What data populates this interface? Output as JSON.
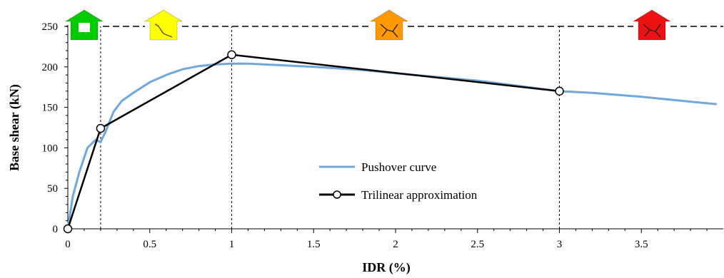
{
  "chart_data": {
    "type": "line",
    "title": "",
    "xlabel": "IDR (%)",
    "ylabel": "Base shear (kN)",
    "xlim": [
      0,
      4
    ],
    "ylim": [
      0,
      250
    ],
    "x_ticks": [
      "0",
      "0.5",
      "1",
      "1.5",
      "2",
      "2.5",
      "3",
      "3.5"
    ],
    "y_ticks": [
      "0",
      "50",
      "100",
      "150",
      "200",
      "250"
    ],
    "x_tick_values": [
      0,
      0.5,
      1,
      1.5,
      2,
      2.5,
      3,
      3.5
    ],
    "y_tick_values": [
      0,
      50,
      100,
      150,
      200,
      250
    ],
    "grid": false,
    "legend_position": "center",
    "series": [
      {
        "name": "Pushover curve",
        "color": "#6fa8dc",
        "marker": "none",
        "x": [
          0,
          0.03,
          0.07,
          0.12,
          0.17,
          0.2,
          0.23,
          0.28,
          0.33,
          0.4,
          0.5,
          0.6,
          0.7,
          0.8,
          0.9,
          1.0,
          1.1,
          1.2,
          1.5,
          1.8,
          2.0,
          2.5,
          3.0,
          3.2,
          3.5,
          3.8,
          3.96
        ],
        "y": [
          0,
          40,
          70,
          100,
          110,
          107,
          120,
          145,
          158,
          168,
          181,
          190,
          197,
          201,
          203,
          204,
          204,
          203,
          200,
          196,
          192,
          183,
          170,
          168,
          163,
          157,
          154
        ]
      },
      {
        "name": "Trilinear approximation",
        "color": "#000000",
        "marker": "open-circle",
        "x": [
          0,
          0.2,
          1.0,
          3.0
        ],
        "y": [
          0,
          124,
          215,
          170
        ]
      }
    ],
    "vertical_lines": [
      0.2,
      1.0,
      3.0
    ],
    "damage_state_icons": [
      {
        "name": "green-house-icon",
        "color": "#00cc00"
      },
      {
        "name": "yellow-house-icon",
        "color": "#ffff00"
      },
      {
        "name": "orange-house-icon",
        "color": "#ff9900"
      },
      {
        "name": "red-house-icon",
        "color": "#ee1111"
      }
    ]
  }
}
